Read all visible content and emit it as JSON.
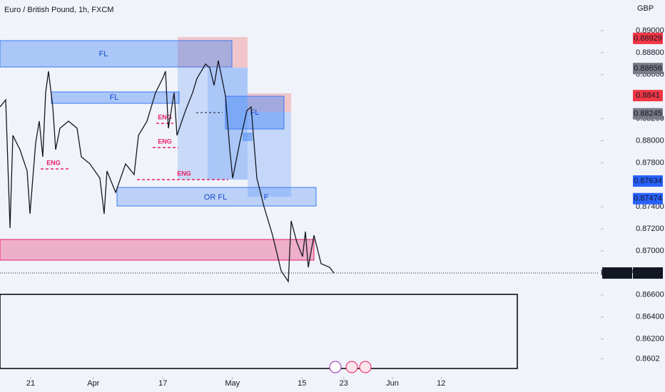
{
  "chart_data": {
    "type": "line",
    "title": "Euro / British Pound, 1h, FXCM",
    "y_axis_label": "GBP",
    "x": [
      -4.41,
      -3.59,
      -2.97,
      -2.56,
      -1.54,
      -0.51,
      -0.1,
      0.72,
      1.23,
      1.74,
      2.15,
      2.56,
      3.18,
      3.59,
      4.21,
      5.44,
      6.67,
      7.28,
      8.51,
      9.95,
      10.56,
      10.97,
      12.21,
      13.64,
      14.87,
      15.49,
      16.72,
      17.95,
      18.97,
      19.38,
      19.79,
      20.62,
      21.03,
      22.26,
      23.28,
      23.9,
      25.13,
      25.74,
      26.36,
      26.97,
      28.0,
      28.62,
      29.03,
      30.05,
      31.08,
      31.69,
      32.51,
      33.54,
      34.77,
      36.0,
      37.03,
      37.44,
      38.26,
      39.08,
      39.49,
      39.9,
      40.72,
      41.74,
      42.97,
      43.59
    ],
    "series": [
      {
        "name": "EURGBP",
        "color": "#131722",
        "values": [
          0.88307,
          0.88372,
          0.87207,
          0.88049,
          0.87919,
          0.87725,
          0.87337,
          0.87984,
          0.88178,
          0.87854,
          0.88437,
          0.88631,
          0.88307,
          0.87919,
          0.88113,
          0.88178,
          0.88113,
          0.87854,
          0.8779,
          0.8766,
          0.87337,
          0.87725,
          0.87531,
          0.8779,
          0.87693,
          0.88049,
          0.88178,
          0.88437,
          0.88566,
          0.88631,
          0.88113,
          0.88437,
          0.88049,
          0.88275,
          0.88437,
          0.88566,
          0.88696,
          0.88663,
          0.88502,
          0.88728,
          0.88405,
          0.87919,
          0.8766,
          0.87984,
          0.88275,
          0.88307,
          0.8766,
          0.87401,
          0.87142,
          0.86819,
          0.86722,
          0.87272,
          0.87078,
          0.86948,
          0.87175,
          0.86851,
          0.87142,
          0.86884,
          0.86851,
          0.86799
        ]
      }
    ],
    "xlim": [
      -4.41,
      81.74
    ],
    "xticks": [
      {
        "value": 0,
        "label": "21"
      },
      {
        "value": 9,
        "label": "Apr"
      },
      {
        "value": 19,
        "label": "17"
      },
      {
        "value": 29,
        "label": "May"
      },
      {
        "value": 39,
        "label": "15"
      },
      {
        "value": 45,
        "label": "23"
      },
      {
        "value": 52,
        "label": "Jun"
      },
      {
        "value": 59,
        "label": "12"
      }
    ],
    "ylim": [
      0.85861,
      0.89278
    ],
    "yticks": [
      {
        "value": 0.89,
        "label": "0.89000"
      },
      {
        "value": 0.888,
        "label": "0.88800"
      },
      {
        "value": 0.886,
        "label": "0.88600"
      },
      {
        "value": 0.882,
        "label": "0.88200"
      },
      {
        "value": 0.88,
        "label": "0.88000"
      },
      {
        "value": 0.878,
        "label": "0.87800"
      },
      {
        "value": 0.874,
        "label": "0.87400"
      },
      {
        "value": 0.872,
        "label": "0.87200"
      },
      {
        "value": 0.87,
        "label": "0.87000"
      },
      {
        "value": 0.866,
        "label": "0.86600"
      },
      {
        "value": 0.864,
        "label": "0.86400"
      },
      {
        "value": 0.862,
        "label": "0.86200"
      },
      0.8602
    ],
    "price_tags": [
      {
        "value": 0.88929,
        "color": "#f23645"
      },
      {
        "value": 0.88656,
        "color": "#787b86"
      },
      {
        "value": 0.8841,
        "color": "#f23645"
      },
      {
        "value": 0.88245,
        "color": "#787b86"
      },
      {
        "value": 0.87634,
        "color": "#2962ff"
      },
      {
        "value": 0.87474,
        "color": "#2962ff"
      }
    ],
    "annotations": [
      "FL",
      "FL",
      "FL",
      "OR FL",
      "F",
      "ENG",
      "ENG",
      "ENG",
      "ENG"
    ]
  }
}
